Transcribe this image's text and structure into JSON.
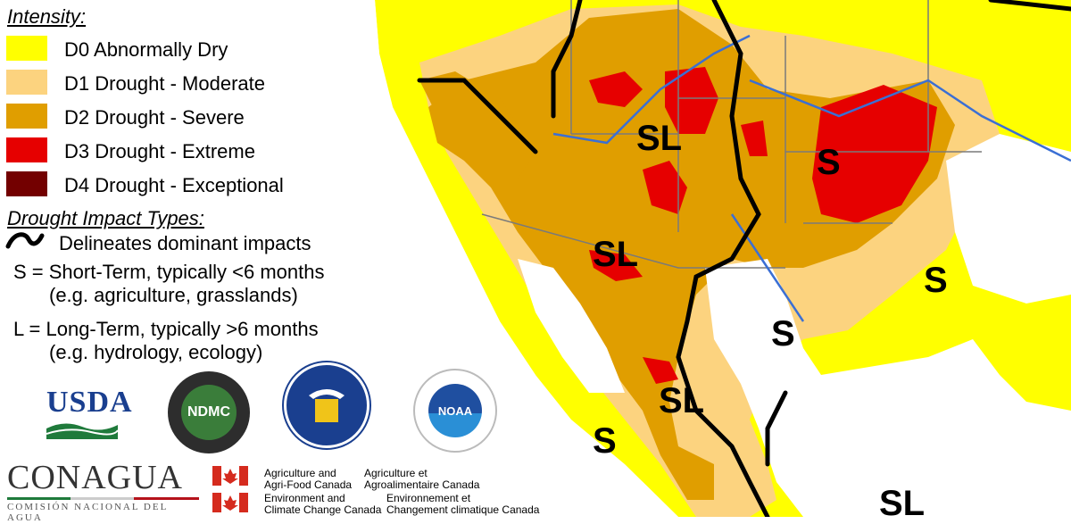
{
  "legend": {
    "intensity_heading": "Intensity:",
    "levels": [
      {
        "label": "D0 Abnormally Dry",
        "color": "#ffff00"
      },
      {
        "label": "D1 Drought - Moderate",
        "color": "#fcd37f"
      },
      {
        "label": "D2 Drought - Severe",
        "color": "#e09e00"
      },
      {
        "label": "D3 Drought - Extreme",
        "color": "#e60000"
      },
      {
        "label": "D4 Drought - Exceptional",
        "color": "#730000"
      }
    ],
    "impact_heading": "Drought Impact Types:",
    "delineates": "Delineates dominant impacts",
    "short_term": "S = Short-Term, typically <6 months",
    "short_term_example": "(e.g. agriculture, grasslands)",
    "long_term": "L = Long-Term, typically >6 months",
    "long_term_example": "(e.g. hydrology, ecology)"
  },
  "map_labels": [
    "SL",
    "S",
    "SL",
    "S",
    "S",
    "SL",
    "S",
    "SL"
  ],
  "logos": {
    "usda": "USDA",
    "ndmc": "NDMC",
    "noaa": "NOAA",
    "conagua_main": "CONAGUA",
    "conagua_sub": "COMISIÓN NACIONAL DEL AGUA",
    "canada_agri_en": "Agriculture and\nAgri-Food Canada",
    "canada_agri_fr": "Agriculture et\nAgroalimentaire Canada",
    "canada_env_en": "Environment and\nClimate Change Canada",
    "canada_env_fr": "Environnement et\nChangement climatique Canada"
  }
}
